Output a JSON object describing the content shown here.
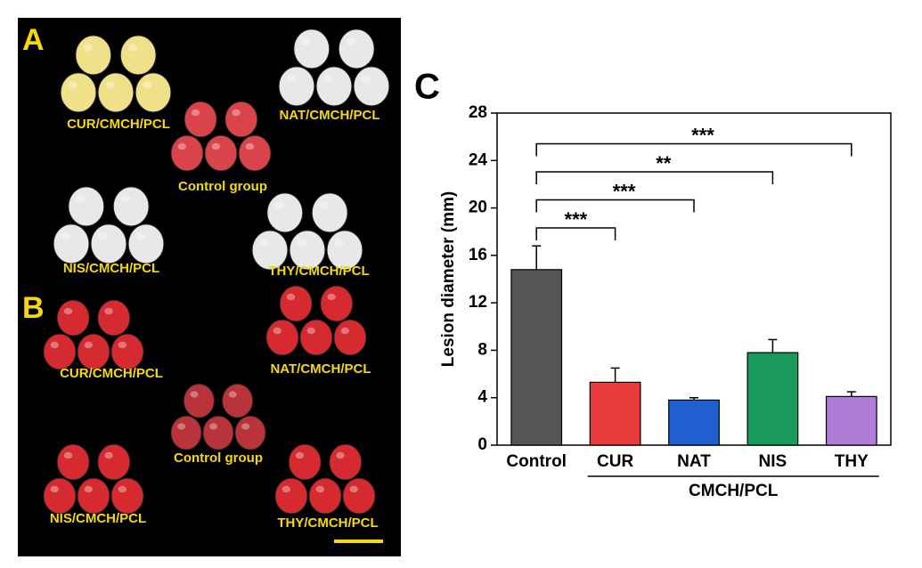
{
  "photo_panels": [
    {
      "label": "A",
      "captions": [
        "CUR/CMCH/PCL",
        "NAT/CMCH/PCL",
        "Control group",
        "NIS/CMCH/PCL",
        "THY/CMCH/PCL"
      ]
    },
    {
      "label": "B",
      "captions": [
        "CUR/CMCH/PCL",
        "NAT/CMCH/PCL",
        "Control group",
        "NIS/CMCH/PCL",
        "THY/CMCH/PCL"
      ]
    }
  ],
  "chart_data": {
    "type": "bar",
    "panel_label": "C",
    "y_label": "Lesion diameter (mm)",
    "categories": [
      "Control",
      "CUR",
      "NAT",
      "NIS",
      "THY"
    ],
    "values": [
      14.8,
      5.3,
      3.8,
      7.8,
      4.1
    ],
    "errors": [
      2.0,
      1.2,
      0.2,
      1.1,
      0.4
    ],
    "colors": [
      "#555555",
      "#e83c3c",
      "#1f5fcf",
      "#1a9a5a",
      "#b07cd8"
    ],
    "group_label": "CMCH/PCL",
    "significance": [
      {
        "text": "***",
        "from": "Control",
        "to": "CUR"
      },
      {
        "text": "***",
        "from": "Control",
        "to": "NAT"
      },
      {
        "text": "**",
        "from": "Control",
        "to": "NIS"
      },
      {
        "text": "***",
        "from": "Control",
        "to": "THY"
      }
    ],
    "ylim": [
      0,
      28
    ],
    "yticks": [
      0,
      4,
      8,
      12,
      16,
      20,
      24,
      28
    ]
  }
}
